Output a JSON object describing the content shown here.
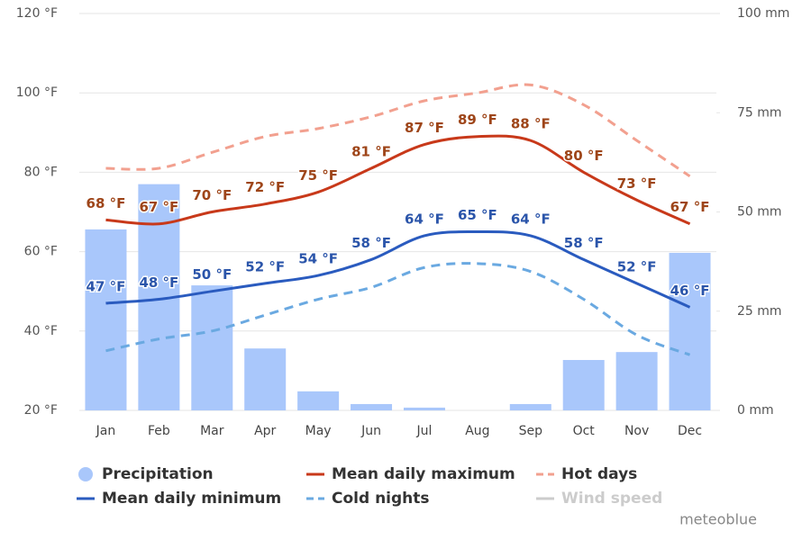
{
  "chart_data": {
    "type": "combo",
    "categories": [
      "Jan",
      "Feb",
      "Mar",
      "Apr",
      "May",
      "Jun",
      "Jul",
      "Aug",
      "Sep",
      "Oct",
      "Nov",
      "Dec"
    ],
    "ylim": [
      20,
      120
    ],
    "yticks": [
      {
        "value": 20,
        "label": "20 °F"
      },
      {
        "value": 40,
        "label": "40 °F"
      },
      {
        "value": 60,
        "label": "60 °F"
      },
      {
        "value": 80,
        "label": "80 °F"
      },
      {
        "value": 100,
        "label": "100 °F"
      },
      {
        "value": 120,
        "label": "120 °F"
      }
    ],
    "y2lim": [
      0,
      100
    ],
    "y2ticks": [
      {
        "value": 0,
        "label": "0 mm"
      },
      {
        "value": 25,
        "label": "25 mm"
      },
      {
        "value": 50,
        "label": "50 mm"
      },
      {
        "value": 75,
        "label": "75 mm"
      },
      {
        "value": 100,
        "label": "100 mm"
      }
    ],
    "grid": true,
    "series": [
      {
        "name": "Precipitation",
        "type": "bar",
        "axis": "y2",
        "color": "#a9c7fb",
        "values": [
          45.6,
          57,
          31.5,
          15.6,
          4.8,
          1.6,
          0.7,
          0,
          1.6,
          12.7,
          14.7,
          39.7
        ]
      },
      {
        "name": "Mean daily maximum",
        "type": "line",
        "color": "#c8391a",
        "label_color": "#9e4519",
        "values": [
          68,
          67,
          70,
          72,
          75,
          81,
          87,
          89,
          88,
          80,
          73,
          67
        ],
        "value_labels": [
          "68 °F",
          "67 °F",
          "70 °F",
          "72 °F",
          "75 °F",
          "81 °F",
          "87 °F",
          "89 °F",
          "88 °F",
          "80 °F",
          "73 °F",
          "67 °F"
        ]
      },
      {
        "name": "Hot days",
        "type": "line",
        "dash": true,
        "color": "#f2a08f",
        "values": [
          81,
          81,
          85,
          89,
          91,
          94,
          98,
          100,
          102,
          97,
          88,
          79
        ]
      },
      {
        "name": "Mean daily minimum",
        "type": "line",
        "color": "#2a5bbf",
        "label_color": "#2b55aa",
        "values": [
          47,
          48,
          50,
          52,
          54,
          58,
          64,
          65,
          64,
          58,
          52,
          46
        ],
        "value_labels": [
          "47 °F",
          "48 °F",
          "50 °F",
          "52 °F",
          "54 °F",
          "58 °F",
          "64 °F",
          "65 °F",
          "64 °F",
          "58 °F",
          "52 °F",
          "46 °F"
        ]
      },
      {
        "name": "Cold nights",
        "type": "line",
        "dash": true,
        "color": "#6aa9e1",
        "values": [
          35,
          38,
          40,
          44,
          48,
          51,
          56,
          57,
          55,
          48,
          39,
          34
        ]
      },
      {
        "name": "Wind speed",
        "type": "line",
        "color": "#cccccc",
        "hidden": true
      }
    ],
    "watermark": "meteoblue"
  }
}
